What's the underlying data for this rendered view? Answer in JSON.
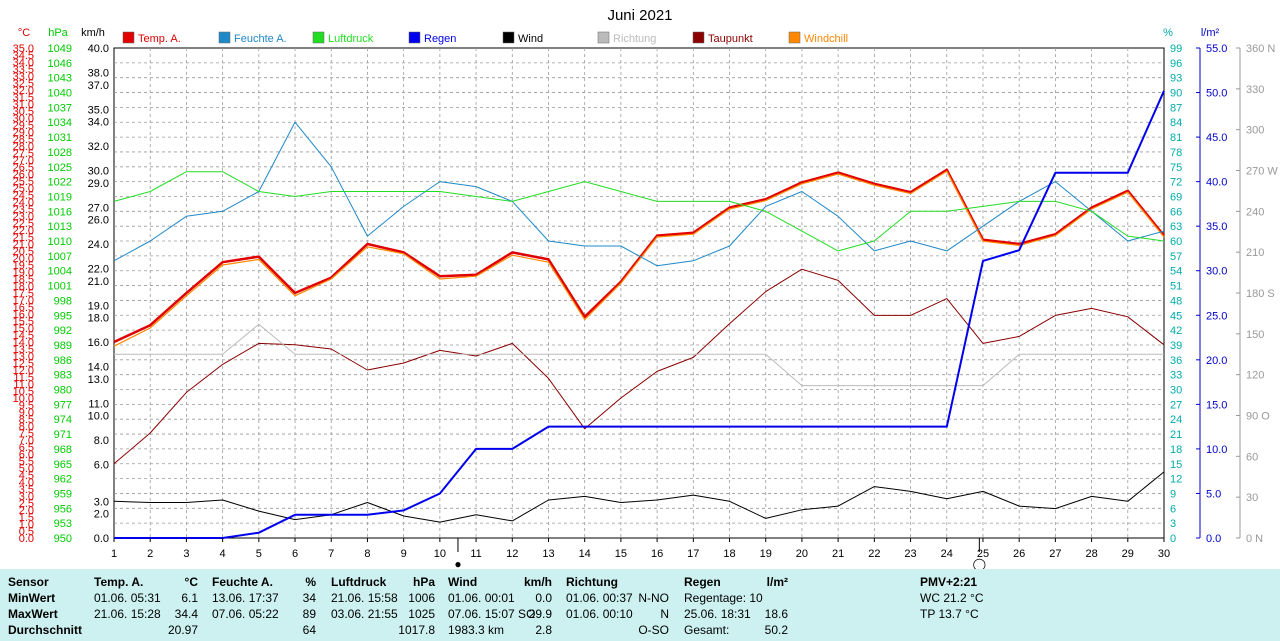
{
  "chart_data": {
    "type": "line",
    "title": "Juni 2021",
    "x": [
      1,
      2,
      3,
      4,
      5,
      6,
      7,
      8,
      9,
      10,
      11,
      12,
      13,
      14,
      15,
      16,
      17,
      18,
      19,
      20,
      21,
      22,
      23,
      24,
      25,
      26,
      27,
      28,
      29,
      30
    ],
    "axes": {
      "temp": {
        "unit": "°C",
        "range": [
          0,
          35
        ],
        "ticks": [
          "0.0",
          "0.5",
          "1.0",
          "1.5",
          "2.0",
          "2.5",
          "3.0",
          "3.5",
          "4.0",
          "4.5",
          "5.0",
          "5.5",
          "6.0",
          "6.5",
          "7.0",
          "7.5",
          "8.0",
          "8.5",
          "9.0",
          "9.5",
          "10.0",
          "10.5",
          "11.0",
          "11.5",
          "12.0",
          "12.5",
          "13.0",
          "13.5",
          "14.0",
          "14.5",
          "15.0",
          "15.5",
          "16.0",
          "16.5",
          "17.0",
          "17.5",
          "18.0",
          "18.5",
          "19.0",
          "19.5",
          "20.0",
          "20.5",
          "21.0",
          "21.5",
          "22.0",
          "22.5",
          "23.0",
          "23.5",
          "24.0",
          "24.5",
          "25.0",
          "25.5",
          "26.0",
          "26.5",
          "27.0",
          "27.5",
          "28.0",
          "28.5",
          "29.0",
          "29.5",
          "30.0",
          "30.5",
          "31.0",
          "31.5",
          "32.0",
          "32.5",
          "33.0",
          "33.5",
          "34.0",
          "34.5",
          "35.0"
        ],
        "color": "#e00000"
      },
      "pressure": {
        "unit": "hPa",
        "range": [
          950,
          1049
        ],
        "ticks": [
          "950",
          "953",
          "956",
          "959",
          "962",
          "965",
          "968",
          "971",
          "974",
          "977",
          "980",
          "983",
          "986",
          "989",
          "992",
          "995",
          "998",
          "1001",
          "1004",
          "1007",
          "1010",
          "1013",
          "1016",
          "1019",
          "1022",
          "1025",
          "1028",
          "1031",
          "1034",
          "1037",
          "1040",
          "1043",
          "1046",
          "1049"
        ],
        "color": "#00cc00"
      },
      "wind": {
        "unit": "km/h",
        "range": [
          0,
          40
        ],
        "ticks": [
          "0.0",
          "2.0",
          "3.0",
          "6.0",
          "8.0",
          "10.0",
          "11.0",
          "13.0",
          "14.0",
          "16.0",
          "18.0",
          "19.0",
          "21.0",
          "22.0",
          "24.0",
          "26.0",
          "27.0",
          "29.0",
          "30.0",
          "32.0",
          "34.0",
          "35.0",
          "37.0",
          "38.0",
          "40.0"
        ],
        "color": "#000000"
      },
      "humidity": {
        "unit": "%",
        "range": [
          0,
          99
        ],
        "ticks": [
          "0",
          "3",
          "6",
          "9",
          "12",
          "15",
          "18",
          "21",
          "24",
          "27",
          "30",
          "33",
          "36",
          "39",
          "42",
          "45",
          "48",
          "51",
          "54",
          "57",
          "60",
          "63",
          "66",
          "69",
          "72",
          "75",
          "78",
          "81",
          "84",
          "87",
          "90",
          "93",
          "96",
          "99"
        ],
        "color": "#00aaaa"
      },
      "rain": {
        "unit": "l/m²",
        "range": [
          0,
          55
        ],
        "ticks": [
          "0.0",
          "5.0",
          "10.0",
          "15.0",
          "20.0",
          "25.0",
          "30.0",
          "35.0",
          "40.0",
          "45.0",
          "50.0",
          "55.0"
        ],
        "color": "#0000cc"
      },
      "direction": {
        "range": [
          0,
          360
        ],
        "ticks": [
          "0 N",
          "30",
          "60",
          "90 O",
          "120",
          "150",
          "180 S",
          "210",
          "240",
          "270 W",
          "300",
          "330",
          "360 N"
        ],
        "color": "#999999"
      }
    },
    "legend": [
      {
        "name": "Temp. A.",
        "color": "#e00000"
      },
      {
        "name": "Feuchte A.",
        "color": "#1e88c8"
      },
      {
        "name": "Luftdruck",
        "color": "#22dd22"
      },
      {
        "name": "Regen",
        "color": "#0000ee"
      },
      {
        "name": "Wind",
        "color": "#000000"
      },
      {
        "name": "Richtung",
        "color": "#bbbbbb"
      },
      {
        "name": "Taupunkt",
        "color": "#8b0000"
      },
      {
        "name": "Windchill",
        "color": "#ff8800"
      }
    ],
    "series": [
      {
        "name": "Temp. A.",
        "axis": "temp",
        "color": "#e00000",
        "width": 2.5,
        "values": [
          14.0,
          15.2,
          17.5,
          19.7,
          20.1,
          17.5,
          18.6,
          21.0,
          20.4,
          18.7,
          18.8,
          20.4,
          19.9,
          15.8,
          18.3,
          21.6,
          21.8,
          23.6,
          24.2,
          25.4,
          26.1,
          25.3,
          24.7,
          26.3,
          21.3,
          21.0,
          21.7,
          23.6,
          24.8,
          21.6
        ]
      },
      {
        "name": "Windchill",
        "axis": "temp",
        "color": "#ff8800",
        "width": 1.2,
        "values": [
          13.7,
          15.0,
          17.3,
          19.5,
          19.9,
          17.3,
          18.5,
          20.8,
          20.3,
          18.5,
          18.7,
          20.2,
          19.7,
          15.6,
          18.2,
          21.5,
          21.7,
          23.5,
          24.1,
          25.3,
          26.0,
          25.2,
          24.6,
          26.2,
          21.2,
          20.9,
          21.6,
          23.5,
          24.7,
          21.5
        ]
      },
      {
        "name": "Taupunkt",
        "axis": "temp",
        "color": "#8b0000",
        "width": 1,
        "values": [
          5.3,
          7.5,
          10.4,
          12.4,
          13.9,
          13.8,
          13.5,
          12.0,
          12.5,
          13.4,
          13.0,
          13.9,
          11.4,
          7.8,
          10.0,
          11.9,
          12.9,
          15.3,
          17.6,
          19.2,
          18.4,
          15.9,
          15.9,
          17.1,
          13.9,
          14.4,
          15.9,
          16.4,
          15.8,
          13.8
        ]
      },
      {
        "name": "Feuchte A.",
        "axis": "humidity",
        "color": "#1e88c8",
        "width": 1,
        "values": [
          56,
          60,
          65,
          66,
          70,
          84,
          75,
          61,
          67,
          72,
          71,
          68,
          60,
          59,
          59,
          55,
          56,
          59,
          67,
          70,
          65,
          58,
          60,
          58,
          63,
          68,
          72,
          66,
          60,
          62
        ]
      },
      {
        "name": "Luftdruck",
        "axis": "pressure",
        "color": "#22dd22",
        "width": 1,
        "values": [
          1018,
          1020,
          1024,
          1024,
          1020,
          1019,
          1020,
          1020,
          1020,
          1020,
          1019,
          1018,
          1020,
          1022,
          1020,
          1018,
          1018,
          1018,
          1016,
          1012,
          1008,
          1010,
          1016,
          1016,
          1017,
          1018,
          1018,
          1016,
          1011,
          1010
        ]
      },
      {
        "name": "Richtung",
        "axis": "direction",
        "color": "#bbbbbb",
        "width": 1,
        "values": [
          135,
          135,
          135,
          135,
          157,
          135,
          135,
          135,
          135,
          135,
          135,
          135,
          135,
          135,
          135,
          135,
          135,
          135,
          135,
          112,
          112,
          112,
          112,
          112,
          112,
          135,
          135,
          135,
          135,
          135
        ]
      },
      {
        "name": "Wind",
        "axis": "wind",
        "color": "#000000",
        "width": 1,
        "values": [
          3.0,
          2.9,
          2.9,
          3.1,
          2.2,
          1.5,
          1.9,
          2.9,
          1.8,
          1.3,
          1.9,
          1.4,
          3.1,
          3.4,
          2.9,
          3.1,
          3.5,
          3.0,
          1.6,
          2.3,
          2.6,
          4.2,
          3.8,
          3.2,
          3.8,
          2.6,
          2.4,
          3.4,
          3.0,
          5.4
        ]
      },
      {
        "name": "Regen",
        "axis": "rain",
        "color": "#0000ee",
        "width": 2,
        "values": [
          0,
          0,
          0,
          0,
          0.6,
          2.6,
          2.6,
          2.6,
          3.1,
          5.0,
          10.0,
          10.0,
          12.5,
          12.5,
          12.5,
          12.5,
          12.5,
          12.5,
          12.5,
          12.5,
          12.5,
          12.5,
          12.5,
          12.5,
          31.1,
          32.3,
          41.0,
          41.0,
          41.0,
          50.2
        ]
      }
    ],
    "moon_markers": [
      {
        "x": 10.5,
        "symbol": "●"
      },
      {
        "x": 24.9,
        "symbol": "◯"
      }
    ]
  },
  "stats": {
    "sensor": {
      "header": "Sensor",
      "rows": [
        "MinWert",
        "MaxWert",
        "Durchschnitt"
      ]
    },
    "temp": {
      "header": "Temp. A.",
      "unit": "°C",
      "min_time": "01.06.  05:31",
      "min_val": "6.1",
      "max_time": "21.06.  15:28",
      "max_val": "34.4",
      "avg": "20.97"
    },
    "humidity": {
      "header": "Feuchte A.",
      "unit": "%",
      "min_time": "13.06.  17:37",
      "min_val": "34",
      "max_time": "07.06.  05:22",
      "max_val": "89",
      "avg": "64"
    },
    "pressure": {
      "header": "Luftdruck",
      "unit": "hPa",
      "min_time": "21.06.  15:58",
      "min_val": "1006",
      "max_time": "03.06.  21:55",
      "max_val": "1025",
      "avg": "1017.8"
    },
    "wind": {
      "header": "Wind",
      "unit": "km/h",
      "min_time": "01.06.  00:01",
      "min_val": "0.0",
      "max_time": "07.06.  15:07 SO",
      "max_val": "29.9",
      "avg_label": "1983.3 km",
      "avg": "2.8"
    },
    "direction": {
      "header": "Richtung",
      "min_time": "01.06.  00:37",
      "min_val": "N-NO",
      "max_time": "01.06.  00:10",
      "max_val": "N",
      "avg": "O-SO"
    },
    "rain": {
      "header": "Regen",
      "unit": "l/m²",
      "row1": "Regentage: 10",
      "row2_label": "25.06.  18:31",
      "row2_val": "18.6",
      "row3_label": "Gesamt:",
      "row3_val": "50.2"
    },
    "pmv": {
      "header": "PMV+2:21",
      "wc": "WC 21.2 °C",
      "tp": "TP 13.7 °C"
    }
  }
}
